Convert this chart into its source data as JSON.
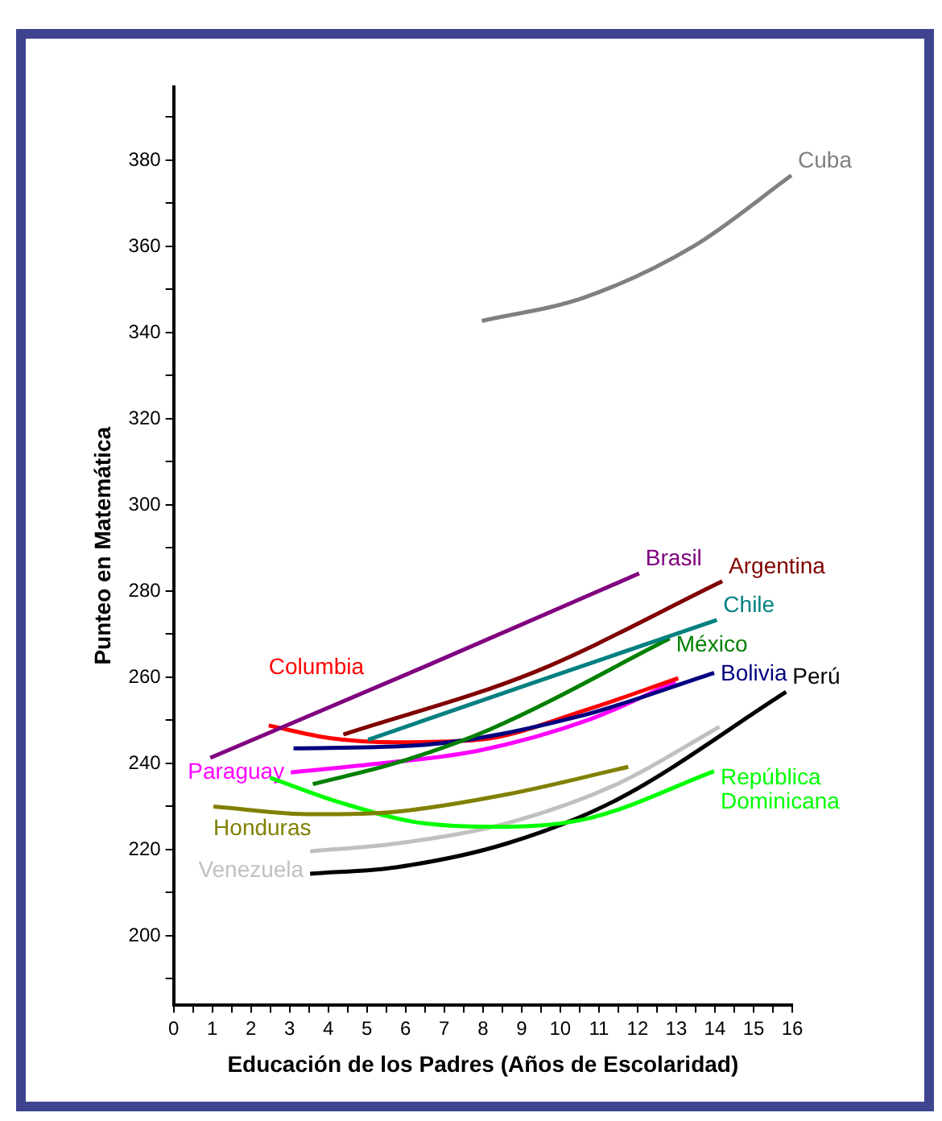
{
  "chart_data": {
    "type": "line",
    "xlabel": "Educación de los Padres (Años de Escolaridad)",
    "ylabel": "Punteo en Matemática",
    "xlim": [
      0,
      16
    ],
    "ylim": [
      184,
      397
    ],
    "xticks": [
      0,
      {
        "value": 0.5,
        "label": null
      },
      1,
      {
        "value": 1.5,
        "label": null
      },
      2,
      {
        "value": 2.5,
        "label": null
      },
      3,
      {
        "value": 3.5,
        "label": null
      },
      4,
      {
        "value": 4.5,
        "label": null
      },
      5,
      {
        "value": 5.5,
        "label": null
      },
      6,
      {
        "value": 6.5,
        "label": null
      },
      7,
      {
        "value": 7.5,
        "label": null
      },
      8,
      {
        "value": 8.5,
        "label": null
      },
      9,
      {
        "value": 9.5,
        "label": null
      },
      10,
      {
        "value": 10.5,
        "label": null
      },
      11,
      {
        "value": 11.5,
        "label": null
      },
      12,
      {
        "value": 12.5,
        "label": null
      },
      13,
      {
        "value": 13.5,
        "label": null
      },
      14,
      {
        "value": 14.5,
        "label": null
      },
      15,
      {
        "value": 15.5,
        "label": null
      },
      16
    ],
    "yticks": [
      {
        "value": 190,
        "label": null
      },
      200,
      {
        "value": 210,
        "label": null
      },
      220,
      {
        "value": 230,
        "label": null
      },
      240,
      {
        "value": 250,
        "label": null
      },
      260,
      {
        "value": 270,
        "label": null
      },
      280,
      {
        "value": 290,
        "label": null
      },
      300,
      {
        "value": 310,
        "label": null
      },
      320,
      {
        "value": 330,
        "label": null
      },
      340,
      {
        "value": 350,
        "label": null
      },
      360,
      {
        "value": 370,
        "label": null
      },
      380,
      {
        "value": 390,
        "label": null
      }
    ],
    "marker": "none",
    "line_style": "solid",
    "series": [
      {
        "name": "Cuba",
        "color": "#808080",
        "x": [
          7.97,
          10.61,
          13.48,
          15.98
        ],
        "values": [
          342.7,
          348.1,
          360.2,
          376.5
        ]
      },
      {
        "name": "Brasil",
        "color": "#800080",
        "x": [
          0.95,
          6.5,
          12.04
        ],
        "values": [
          241.3,
          262.5,
          284.1
        ]
      },
      {
        "name": "Argentina",
        "color": "#800000",
        "x": [
          4.39,
          9.33,
          14.19
        ],
        "values": [
          246.7,
          261.2,
          282.3
        ]
      },
      {
        "name": "Chile",
        "color": "#008080",
        "x": [
          5.03,
          9.33,
          14.05
        ],
        "values": [
          245.5,
          258.8,
          273.3
        ]
      },
      {
        "name": "México",
        "color": "#008000",
        "x": [
          3.6,
          5.75,
          8.18,
          12.83
        ],
        "values": [
          235.2,
          240.1,
          247.9,
          269
        ]
      },
      {
        "name": "Bolivia",
        "color": "#000080",
        "x": [
          3.1,
          6.47,
          10.47,
          13.98
        ],
        "values": [
          243.5,
          244.3,
          250.9,
          261
        ]
      },
      {
        "name": "Honduras",
        "color": "#808000",
        "x": [
          1.03,
          3.6,
          5.75,
          8.61,
          11.76
        ],
        "values": [
          230,
          228.2,
          228.8,
          232.8,
          239.2
        ]
      },
      {
        "name": "República Dominicana",
        "color": "#00ff00",
        "x": [
          2.49,
          4.32,
          6.47,
          8.61,
          10.76,
          13.98
        ],
        "values": [
          236.7,
          230.9,
          226.1,
          225.3,
          227.3,
          238.2
        ]
      },
      {
        "name": "Columbia",
        "color": "#ff0000",
        "x": [
          2.46,
          4.03,
          5.75,
          7.9,
          10.76,
          13.05
        ],
        "values": [
          248.8,
          245.9,
          244.9,
          245.5,
          252.7,
          259.8
        ]
      },
      {
        "name": "Paraguay",
        "color": "#ff00ff",
        "x": [
          3.03,
          5.03,
          7.9,
          10.76,
          12.98
        ],
        "values": [
          237.9,
          239.7,
          243,
          250.2,
          259
        ]
      },
      {
        "name": "Venezuela",
        "color": "#c0c0c0",
        "x": [
          3.53,
          5.75,
          8.61,
          11.47,
          14.12
        ],
        "values": [
          219.6,
          221.4,
          226.1,
          235.2,
          248.5
        ]
      },
      {
        "name": "Perú",
        "color": "#000000",
        "x": [
          3.53,
          5.75,
          8.61,
          11.47,
          15.84
        ],
        "values": [
          214.4,
          215.9,
          221.4,
          231.6,
          256.6
        ]
      }
    ]
  }
}
